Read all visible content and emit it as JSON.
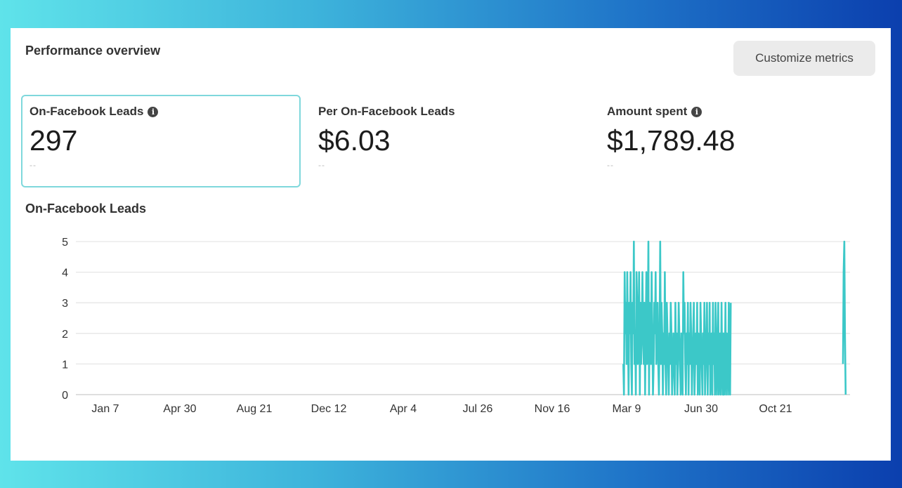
{
  "header": {
    "title": "Performance overview",
    "customize_label": "Customize metrics"
  },
  "metrics": [
    {
      "label": "On-Facebook Leads",
      "value": "297",
      "comparison": "--",
      "info": true,
      "selected": true
    },
    {
      "label": "Per On-Facebook Leads",
      "value": "$6.03",
      "comparison": "--",
      "info": false,
      "selected": false
    },
    {
      "label": "Amount spent",
      "value": "$1,789.48",
      "comparison": "--",
      "info": true,
      "selected": false
    }
  ],
  "chart_data": {
    "type": "line",
    "title": "On-Facebook Leads",
    "color": "#3cc8c8",
    "grid": true,
    "ylim": [
      0,
      5
    ],
    "y_ticks": [
      "0",
      "1",
      "2",
      "3",
      "4",
      "5"
    ],
    "x_ticks": [
      "Jan 7",
      "Apr 30",
      "Aug 21",
      "Dec 12",
      "Apr 4",
      "Jul 26",
      "Nov 16",
      "Mar 9",
      "Jun 30",
      "Oct 21"
    ],
    "series": [
      {
        "segments": [
          {
            "start": "Mar 4",
            "values": [
              1,
              0,
              4,
              2,
              3,
              1,
              4,
              2,
              0,
              3,
              2,
              4,
              1,
              0,
              3,
              2,
              5,
              1,
              2,
              0,
              4,
              3,
              1,
              2,
              4,
              0,
              3,
              1,
              2,
              4,
              2,
              1,
              3,
              0,
              2,
              4,
              1,
              2,
              5,
              0,
              3,
              2,
              1,
              4,
              2,
              0,
              1,
              3,
              2,
              4,
              1,
              2,
              3,
              1,
              0,
              2,
              5,
              1,
              3,
              2,
              0,
              2,
              1,
              4,
              1,
              0,
              3,
              2,
              1,
              0,
              2,
              1,
              3,
              2,
              0,
              1,
              2,
              1,
              0,
              3,
              1,
              2,
              0,
              1,
              3,
              2,
              1,
              0,
              2,
              1,
              0,
              4,
              2,
              3,
              1,
              0,
              2,
              1,
              3,
              0,
              2,
              1,
              3,
              2,
              0,
              1,
              2,
              3,
              0,
              1,
              2,
              1,
              3,
              0,
              2,
              1,
              0,
              3,
              2,
              1,
              0,
              2,
              1,
              3,
              0,
              1,
              2,
              3,
              0,
              2,
              1,
              3,
              0,
              1,
              2,
              0,
              3,
              1,
              2,
              0,
              3,
              1,
              0,
              2,
              3,
              0,
              1,
              2,
              0,
              3,
              1,
              0,
              2,
              0,
              1,
              3,
              0,
              2,
              1,
              0,
              3,
              1,
              0,
              3
            ]
          },
          {
            "start": "Feb 12",
            "values": [
              1,
              4,
              5,
              2,
              0
            ]
          }
        ]
      }
    ]
  }
}
